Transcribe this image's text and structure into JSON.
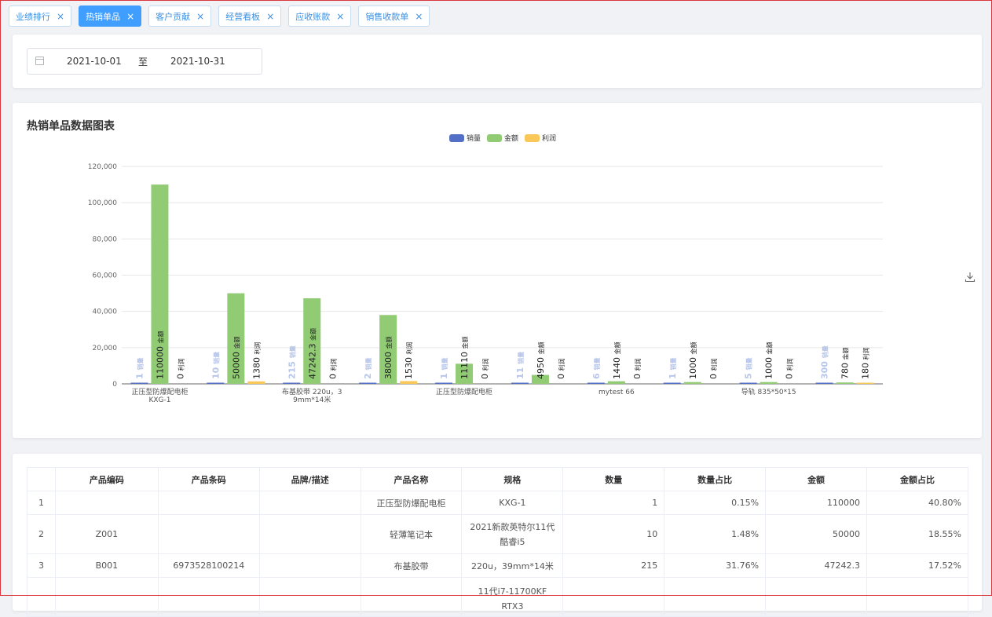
{
  "tabs": [
    {
      "label": "业绩排行",
      "active": false
    },
    {
      "label": "热销单品",
      "active": true
    },
    {
      "label": "客户贡献",
      "active": false
    },
    {
      "label": "经营看板",
      "active": false
    },
    {
      "label": "应收账款",
      "active": false
    },
    {
      "label": "销售收款单",
      "active": false
    }
  ],
  "date_filter": {
    "start": "2021-10-01",
    "separator": "至",
    "end": "2021-10-31"
  },
  "chart_section": {
    "title": "热销单品数据图表",
    "download_icon": "download-icon"
  },
  "chart_data": {
    "type": "bar",
    "categories": [
      "正压型防爆配电柜 KXG-1",
      "",
      "布基胶带 220u，39mm*14米",
      "",
      "正压型防爆配电柜",
      "",
      "mytest 66",
      "",
      "导轨 835*50*15",
      ""
    ],
    "series": [
      {
        "name": "销量",
        "color": "#5470c6",
        "values": [
          1,
          10,
          215,
          2,
          1,
          11,
          6,
          1,
          5,
          300
        ],
        "label_suffix": "销量"
      },
      {
        "name": "金额",
        "color": "#91cc75",
        "values": [
          110000,
          50000,
          47242.3,
          38000,
          11110,
          4950,
          1440,
          1000,
          1000,
          780
        ],
        "label_suffix": "金额"
      },
      {
        "name": "利润",
        "color": "#fac858",
        "values": [
          0,
          1380,
          0,
          1530,
          0,
          0,
          0,
          0,
          0,
          180
        ],
        "label_suffix": "利润"
      }
    ],
    "ylim": [
      0,
      120000
    ],
    "yticks": [
      "0",
      "20,000",
      "40,000",
      "60,000",
      "80,000",
      "100,000",
      "120,000"
    ],
    "legend_position": "top-center",
    "grid": true
  },
  "table": {
    "headers": [
      "",
      "产品编码",
      "产品条码",
      "品牌/描述",
      "产品名称",
      "规格",
      "数量",
      "数量占比",
      "金额",
      "金额占比"
    ],
    "rows": [
      [
        "1",
        "",
        "",
        "",
        "正压型防爆配电柜",
        "KXG-1",
        "1",
        "0.15%",
        "110000",
        "40.80%"
      ],
      [
        "2",
        "Z001",
        "",
        "",
        "轻薄笔记本",
        "2021新款英特尔11代酷睿i5",
        "10",
        "1.48%",
        "50000",
        "18.55%"
      ],
      [
        "3",
        "B001",
        "6973528100214",
        "",
        "布基胶带",
        "220u，39mm*14米",
        "215",
        "31.76%",
        "47242.3",
        "17.52%"
      ],
      [
        "",
        "",
        "",
        "",
        "",
        "11代i7-11700KF RTX3",
        "",
        "",
        "",
        ""
      ]
    ]
  }
}
